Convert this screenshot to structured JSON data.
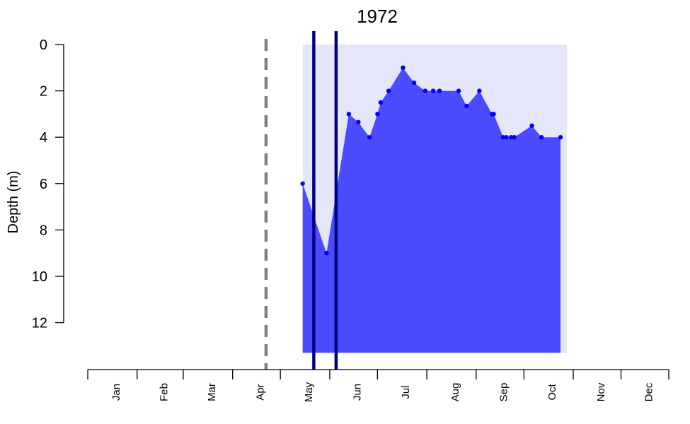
{
  "chart_data": {
    "type": "area",
    "title": "1972",
    "ylabel": "Depth (m)",
    "xlabel": "",
    "y_inverted": true,
    "ylim": [
      0,
      14
    ],
    "yticks": [
      0,
      2,
      4,
      6,
      8,
      10,
      12
    ],
    "xlim_day_of_year": [
      1,
      366
    ],
    "months": [
      "Jan",
      "Feb",
      "Mar",
      "Apr",
      "May",
      "Jun",
      "Jul",
      "Aug",
      "Sep",
      "Oct",
      "Nov",
      "Dec"
    ],
    "grid": false,
    "colors": {
      "water_background": "#e6e6fb",
      "depth_fill": "#4b4bff",
      "points": "#0000ff",
      "dashed_marker": "#808080",
      "solid_markers": "#000080"
    },
    "background_band": {
      "x_start_day": 136,
      "x_end_day": 302,
      "depth_top": 0,
      "depth_bottom": 13.3
    },
    "dashed_vertical_line_day": 113,
    "solid_vertical_lines_day": [
      143,
      157
    ],
    "series": [
      {
        "points": [
          {
            "day": 136,
            "depth": 6.0
          },
          {
            "day": 151,
            "depth": 9.0
          },
          {
            "day": 165,
            "depth": 3.0
          },
          {
            "day": 171,
            "depth": 3.35
          },
          {
            "day": 178,
            "depth": 4.0
          },
          {
            "day": 183,
            "depth": 3.0
          },
          {
            "day": 185,
            "depth": 2.5
          },
          {
            "day": 190,
            "depth": 2.0
          },
          {
            "day": 199,
            "depth": 1.0
          },
          {
            "day": 206,
            "depth": 1.65
          },
          {
            "day": 213,
            "depth": 2.0
          },
          {
            "day": 218,
            "depth": 2.0
          },
          {
            "day": 222,
            "depth": 2.0
          },
          {
            "day": 234,
            "depth": 2.0
          },
          {
            "day": 239,
            "depth": 2.65
          },
          {
            "day": 247,
            "depth": 2.0
          },
          {
            "day": 255,
            "depth": 3.0
          },
          {
            "day": 256,
            "depth": 3.0
          },
          {
            "day": 262,
            "depth": 4.0
          },
          {
            "day": 264,
            "depth": 4.0
          },
          {
            "day": 267,
            "depth": 4.0
          },
          {
            "day": 269,
            "depth": 4.0
          },
          {
            "day": 280,
            "depth": 3.5
          },
          {
            "day": 286,
            "depth": 4.0
          },
          {
            "day": 298,
            "depth": 4.0
          }
        ]
      }
    ]
  }
}
